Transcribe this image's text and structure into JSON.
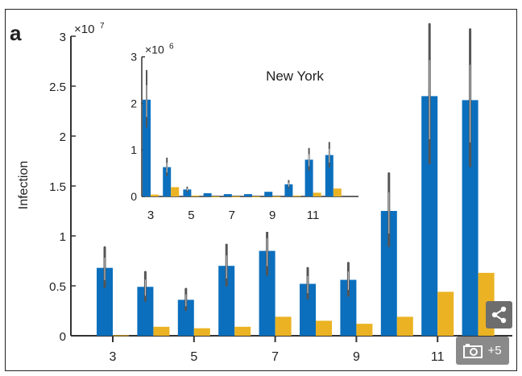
{
  "panel_label": "a",
  "colors": {
    "blue": "#0b6fbd",
    "yellow": "#ebb323",
    "axis": "#333333"
  },
  "chart_data": [
    {
      "type": "bar",
      "title": "",
      "ylabel": "Infection",
      "xlabel": "",
      "y_multiplier": "×10^7",
      "y_multiplier_base": "×10",
      "y_multiplier_exp": "7",
      "ylim": [
        0,
        3
      ],
      "yticks": [
        "0",
        "0.5",
        "1",
        "1.5",
        "2",
        "2.5",
        "3"
      ],
      "x": [
        3,
        4,
        5,
        6,
        7,
        8,
        9,
        10,
        11,
        12
      ],
      "xticks": [
        "3",
        "5",
        "7",
        "9",
        "11"
      ],
      "series": [
        {
          "name": "blue",
          "values": [
            0.68,
            0.49,
            0.36,
            0.7,
            0.85,
            0.52,
            0.56,
            1.25,
            2.4,
            2.36
          ]
        },
        {
          "name": "yellow",
          "values": [
            0.005,
            0.09,
            0.075,
            0.09,
            0.19,
            0.15,
            0.12,
            0.19,
            0.44,
            0.63
          ]
        }
      ]
    },
    {
      "type": "bar",
      "title": "New York",
      "y_multiplier": "×10^6",
      "y_multiplier_base": "×10",
      "y_multiplier_exp": "6",
      "ylim": [
        0,
        3
      ],
      "yticks": [
        "0",
        "1",
        "2",
        "3"
      ],
      "x": [
        3,
        4,
        5,
        6,
        7,
        8,
        9,
        10,
        11,
        12
      ],
      "xticks": [
        "3",
        "5",
        "7",
        "9",
        "11"
      ],
      "series": [
        {
          "name": "blue",
          "values": [
            2.08,
            0.63,
            0.15,
            0.07,
            0.05,
            0.05,
            0.1,
            0.26,
            0.79,
            0.89
          ]
        },
        {
          "name": "yellow",
          "values": [
            0.04,
            0.2,
            0.02,
            0.0,
            0.0,
            0.0,
            0.0,
            0.02,
            0.08,
            0.17
          ]
        }
      ]
    }
  ],
  "overlay": {
    "share_icon": "share-icon",
    "camera_icon": "camera-icon",
    "photo_count": "+5"
  }
}
